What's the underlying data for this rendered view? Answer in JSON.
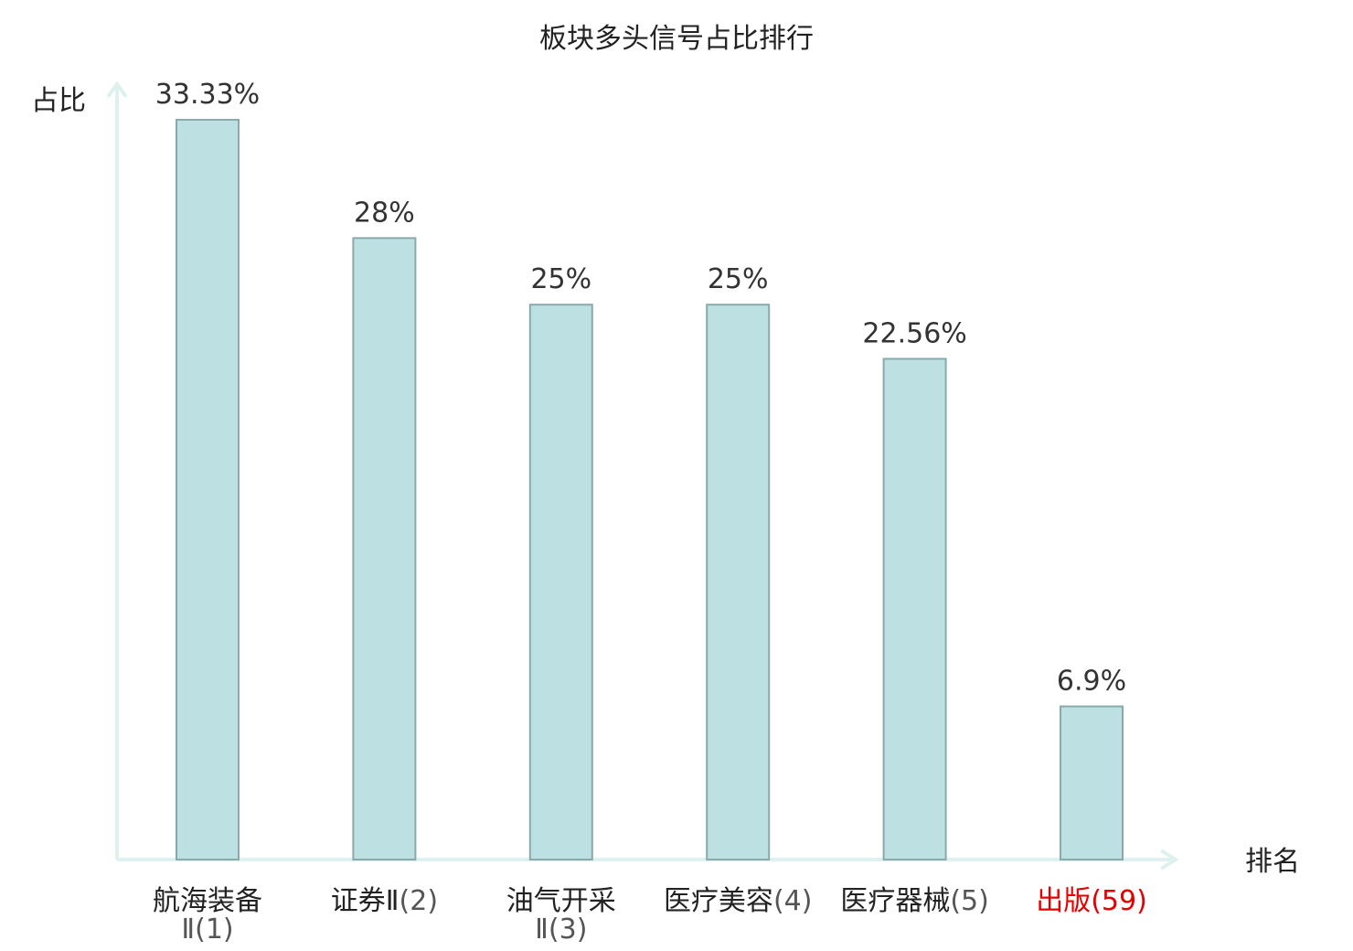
{
  "chart_data": {
    "type": "bar",
    "title": "板块多头信号占比排行",
    "xlabel": "排名",
    "ylabel": "占比",
    "unit": "%",
    "grid": false,
    "legend": "none",
    "ylim": [
      0,
      35
    ],
    "categories": [
      {
        "name_line1": "航海装备",
        "name_line2": "Ⅱ(1)",
        "name_inline_rank": "",
        "highlight": false
      },
      {
        "name_line1": "证券Ⅱ",
        "name_line2": "",
        "name_inline_rank": "(2)",
        "highlight": false
      },
      {
        "name_line1": "油气开采",
        "name_line2": "Ⅱ(3)",
        "name_inline_rank": "",
        "highlight": false
      },
      {
        "name_line1": "医疗美容",
        "name_line2": "",
        "name_inline_rank": "(4)",
        "highlight": false
      },
      {
        "name_line1": "医疗器械",
        "name_line2": "",
        "name_inline_rank": "(5)",
        "highlight": false
      },
      {
        "name_line1": "出版",
        "name_line2": "",
        "name_inline_rank": "(59)",
        "highlight": true
      }
    ],
    "values": [
      33.33,
      28,
      25,
      25,
      22.56,
      6.9
    ],
    "value_labels": [
      "33.33%",
      "28%",
      "25%",
      "25%",
      "22.56%",
      "6.9%"
    ]
  },
  "colors": {
    "bar_fill": "#bde0e2",
    "bar_stroke": "#8aa9ab",
    "axis": "#dff1ef",
    "highlight_text": "#e60000",
    "text": "#222222"
  }
}
